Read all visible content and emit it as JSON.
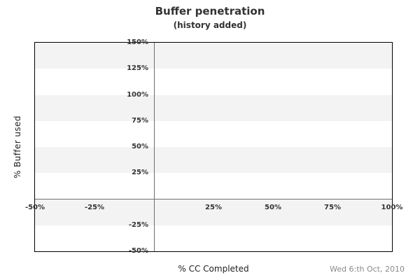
{
  "header": {
    "title": "Buffer penetration",
    "subtitle": "(history added)"
  },
  "footer": {
    "date": "Wed 6:th Oct, 2010"
  },
  "chart_data": {
    "type": "scatter",
    "title": "Buffer penetration",
    "subtitle": "(history added)",
    "xlabel": "% CC Completed",
    "ylabel": "% Buffer used",
    "xlim": [
      -50,
      100
    ],
    "ylim": [
      -50,
      150
    ],
    "x_ticks": [
      {
        "value": -50,
        "label": "-50%"
      },
      {
        "value": -25,
        "label": "-25%"
      },
      {
        "value": 25,
        "label": "25%"
      },
      {
        "value": 50,
        "label": "50%"
      },
      {
        "value": 75,
        "label": "75%"
      },
      {
        "value": 100,
        "label": "100%"
      }
    ],
    "y_ticks": [
      {
        "value": 150,
        "label": "150%"
      },
      {
        "value": 125,
        "label": "125%"
      },
      {
        "value": 100,
        "label": "100%"
      },
      {
        "value": 75,
        "label": "75%"
      },
      {
        "value": 50,
        "label": "50%"
      },
      {
        "value": 25,
        "label": "25%"
      },
      {
        "value": -25,
        "label": "-25%"
      },
      {
        "value": -50,
        "label": "-50%"
      }
    ],
    "series": [],
    "grid": "horizontal-bands",
    "band_step": 25,
    "band_colors": [
      "#f3f3f3",
      "#ffffff"
    ],
    "zero_line_color": "#6e6e6e",
    "border_color": "#000000",
    "legend": "none",
    "annotation": "Wed 6:th Oct, 2010"
  },
  "colors": {
    "title_text": "#333333",
    "tick_text": "#333333",
    "axis_title_text": "#222222",
    "date_text": "#8a8a8a",
    "band_gray": "#f3f3f3",
    "zero_line": "#6e6e6e",
    "plot_border": "#000000"
  }
}
